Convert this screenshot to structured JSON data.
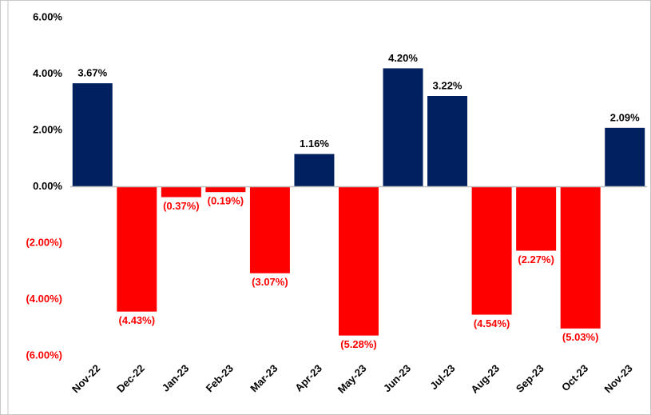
{
  "chart_data": {
    "type": "bar",
    "categories": [
      "Nov-22",
      "Dec-22",
      "Jan-23",
      "Feb-23",
      "Mar-23",
      "Apr-23",
      "May-23",
      "Jun-23",
      "Jul-23",
      "Aug-23",
      "Sep-23",
      "Oct-23",
      "Nov-23"
    ],
    "values": [
      3.67,
      -4.43,
      -0.37,
      -0.19,
      -3.07,
      1.16,
      -5.28,
      4.2,
      3.22,
      -4.54,
      -2.27,
      -5.03,
      2.09
    ],
    "value_labels": [
      "3.67%",
      "(4.43%)",
      "(0.37%)",
      "(0.19%)",
      "(3.07%)",
      "1.16%",
      "(5.28%)",
      "4.20%",
      "3.22%",
      "(4.54%)",
      "(2.27%)",
      "(5.03%)",
      "2.09%"
    ],
    "color": "#002060",
    "negative_color": "#ff0000",
    "ylim": [
      -6,
      6
    ],
    "yticks": [
      {
        "value": -6,
        "label": "(6.00%)"
      },
      {
        "value": -4,
        "label": "(4.00%)"
      },
      {
        "value": -2,
        "label": "(2.00%)"
      },
      {
        "value": 0,
        "label": "0.00%"
      },
      {
        "value": 2,
        "label": "2.00%"
      },
      {
        "value": 4,
        "label": "4.00%"
      },
      {
        "value": 6,
        "label": "6.00%"
      }
    ],
    "grid": false
  }
}
